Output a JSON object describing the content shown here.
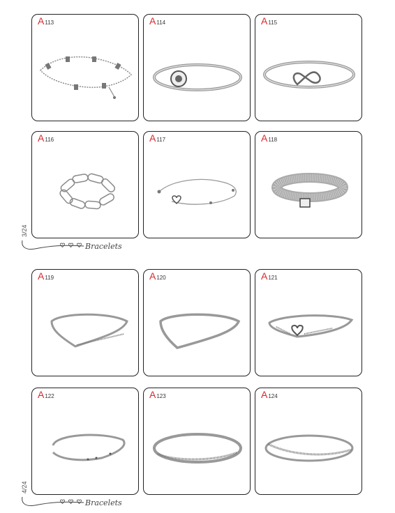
{
  "pages": [
    {
      "number": "3/24",
      "footer_label": "Bracelets"
    },
    {
      "number": "4/24",
      "footer_label": "Bracelets"
    }
  ],
  "products": [
    {
      "code": "113",
      "letter": "A",
      "image": "station-chain-bracelet-icon"
    },
    {
      "code": "114",
      "letter": "A",
      "image": "snake-chain-round-clasp-bracelet-icon"
    },
    {
      "code": "115",
      "letter": "A",
      "image": "infinity-knot-snake-bracelet-icon"
    },
    {
      "code": "116",
      "letter": "A",
      "image": "paperclip-link-bracelet-icon"
    },
    {
      "code": "117",
      "letter": "A",
      "image": "heart-slider-chain-bracelet-icon"
    },
    {
      "code": "118",
      "letter": "A",
      "image": "mesh-band-bracelet-icon"
    },
    {
      "code": "119",
      "letter": "A",
      "image": "pave-wishbone-bangle-icon"
    },
    {
      "code": "120",
      "letter": "A",
      "image": "polished-wishbone-bangle-icon"
    },
    {
      "code": "121",
      "letter": "A",
      "image": "heart-wishbone-bangle-icon"
    },
    {
      "code": "122",
      "letter": "A",
      "image": "open-cuff-bangle-icon"
    },
    {
      "code": "123",
      "letter": "A",
      "image": "pave-double-row-bangle-icon"
    },
    {
      "code": "124",
      "letter": "A",
      "image": "entwined-crossover-bangle-icon"
    }
  ],
  "colors": {
    "code_red": "#d9282f",
    "border": "#222222",
    "metal": "#8a8a8a"
  }
}
